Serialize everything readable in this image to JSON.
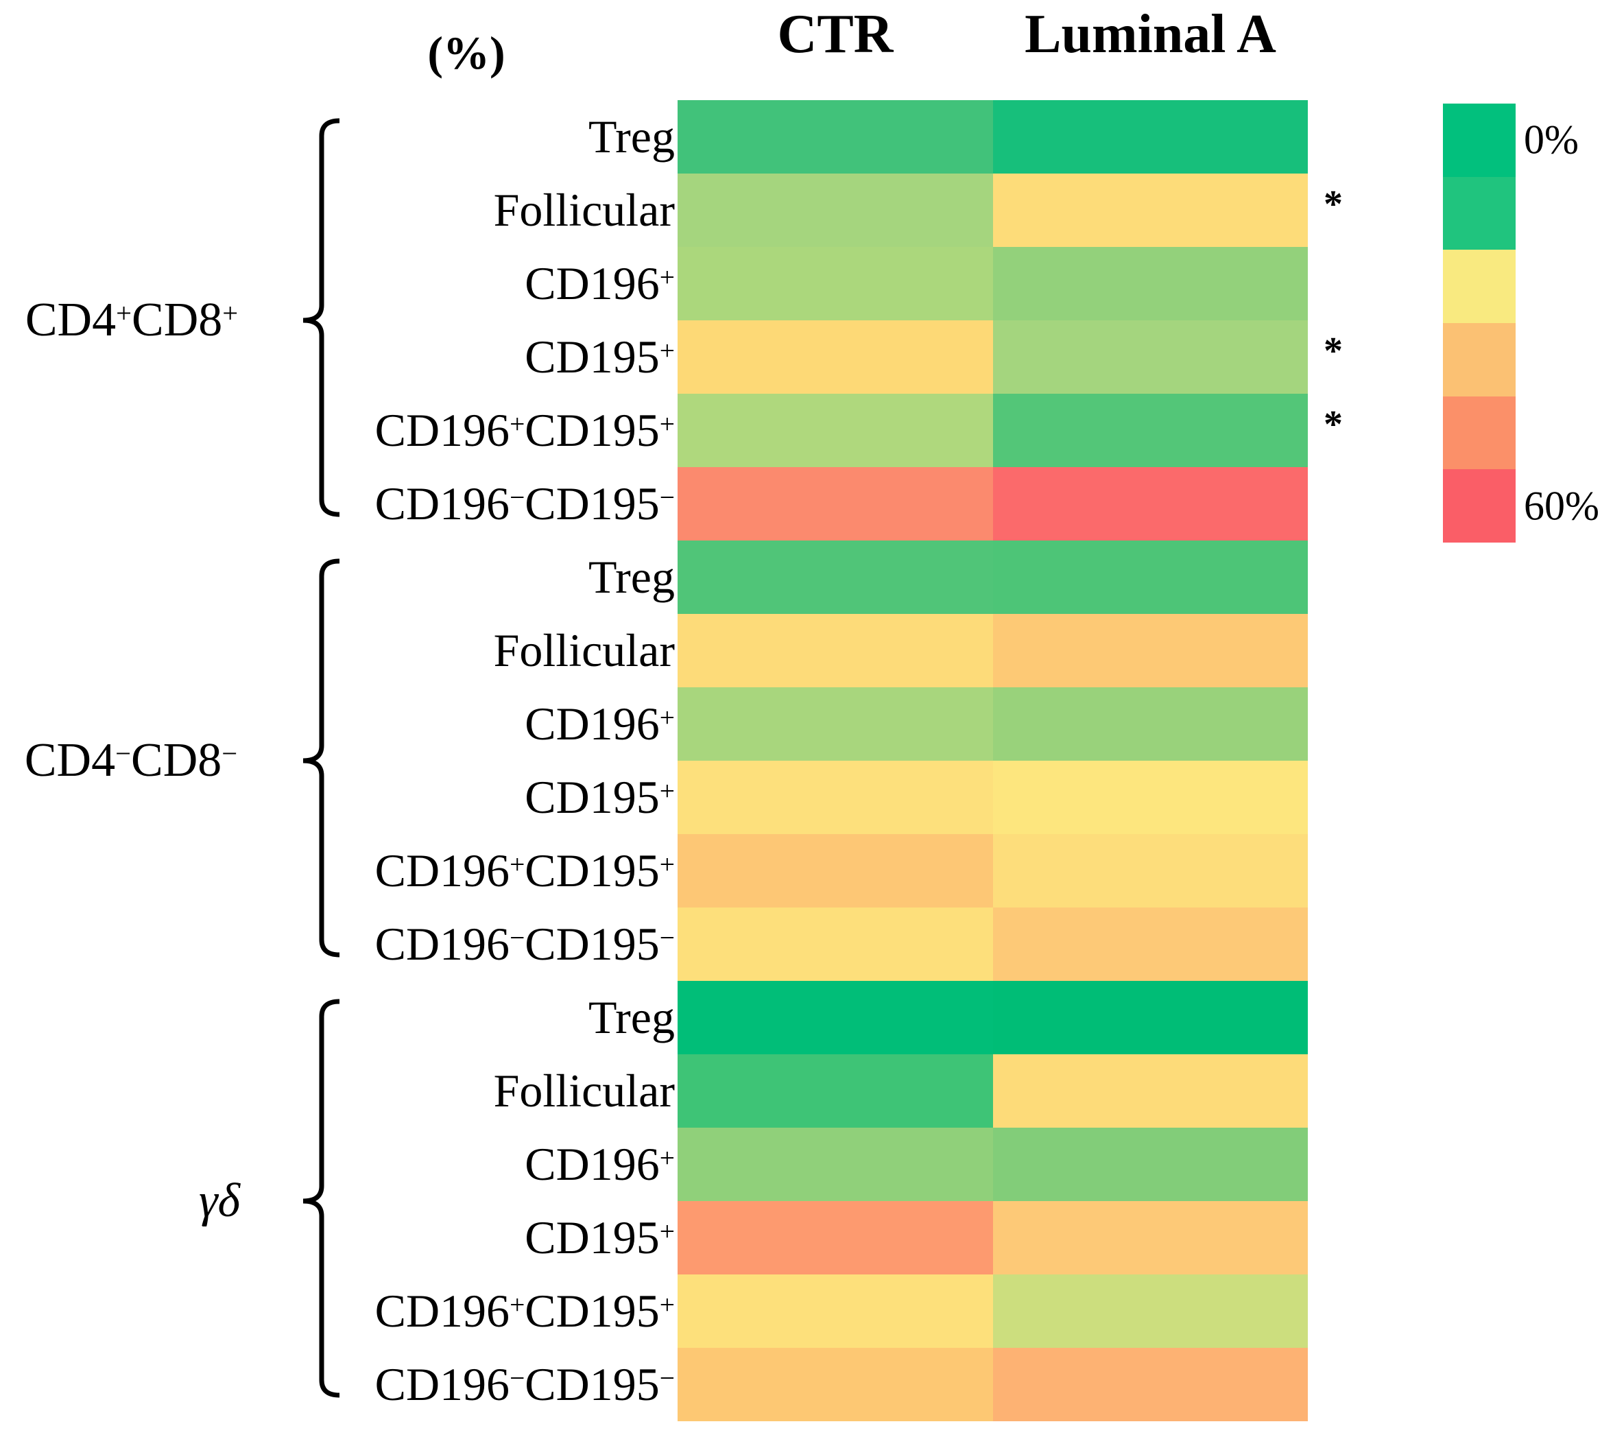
{
  "header": {
    "unit_label": "(%)",
    "columns": [
      "CTR",
      "Luminal A"
    ]
  },
  "legend": {
    "top_label": "0%",
    "bottom_label": "60%",
    "colors": [
      "#02C07D",
      "#20C47E",
      "#F9EA80",
      "#FBC173",
      "#FB9069",
      "#FA5E67"
    ]
  },
  "significance_marker": "*",
  "chart_data": {
    "type": "heatmap",
    "title": "",
    "unit": "%",
    "columns": [
      "CTR",
      "Luminal A"
    ],
    "values_estimated_from_color_scale": true,
    "scale": {
      "min": 0,
      "max": 60,
      "min_label": "0%",
      "max_label": "60%",
      "colormap_green_to_red": [
        "#02C07D",
        "#20C47E",
        "#F9EA80",
        "#FBC173",
        "#FB9069",
        "#FA5E67"
      ]
    },
    "row_groups": [
      {
        "label": "CD4+CD8+",
        "label_parts": [
          {
            "t": "CD4",
            "s": "+"
          },
          {
            "t": "CD8",
            "s": "+"
          }
        ],
        "italic": false,
        "rows": [
          {
            "label": "Treg",
            "label_parts": [
              {
                "t": "Treg",
                "s": ""
              }
            ],
            "significant": false,
            "ctr": {
              "value": 13,
              "color": "#41C27A"
            },
            "luminal_a": {
              "value": 8,
              "color": "#17BF7B"
            }
          },
          {
            "label": "Follicular",
            "label_parts": [
              {
                "t": "Follicular",
                "s": ""
              }
            ],
            "significant": true,
            "ctr": {
              "value": 25,
              "color": "#A5D57E"
            },
            "luminal_a": {
              "value": 35,
              "color": "#FDDC79"
            }
          },
          {
            "label": "CD196+",
            "label_parts": [
              {
                "t": "CD196",
                "s": "+"
              }
            ],
            "significant": false,
            "ctr": {
              "value": 26,
              "color": "#ABD77C"
            },
            "luminal_a": {
              "value": 22,
              "color": "#93D17B"
            }
          },
          {
            "label": "CD195+",
            "label_parts": [
              {
                "t": "CD195",
                "s": "+"
              }
            ],
            "significant": true,
            "ctr": {
              "value": 36,
              "color": "#FDD976"
            },
            "luminal_a": {
              "value": 25,
              "color": "#A4D57E"
            }
          },
          {
            "label": "CD196+CD195+",
            "label_parts": [
              {
                "t": "CD196",
                "s": "+"
              },
              {
                "t": "CD195",
                "s": "+"
              }
            ],
            "significant": true,
            "ctr": {
              "value": 26,
              "color": "#AFD87D"
            },
            "luminal_a": {
              "value": 15,
              "color": "#53C678"
            }
          },
          {
            "label": "CD196−CD195−",
            "label_parts": [
              {
                "t": "CD196",
                "s": "−"
              },
              {
                "t": "CD195",
                "s": "−"
              }
            ],
            "significant": false,
            "ctr": {
              "value": 50,
              "color": "#FB8A6E"
            },
            "luminal_a": {
              "value": 56,
              "color": "#FB6A6B"
            }
          }
        ]
      },
      {
        "label": "CD4−CD8−",
        "label_parts": [
          {
            "t": "CD4",
            "s": "−"
          },
          {
            "t": "CD8",
            "s": "−"
          }
        ],
        "italic": false,
        "rows": [
          {
            "label": "Treg",
            "label_parts": [
              {
                "t": "Treg",
                "s": ""
              }
            ],
            "significant": false,
            "ctr": {
              "value": 15,
              "color": "#50C578"
            },
            "luminal_a": {
              "value": 14,
              "color": "#4DC577"
            }
          },
          {
            "label": "Follicular",
            "label_parts": [
              {
                "t": "Follicular",
                "s": ""
              }
            ],
            "significant": false,
            "ctr": {
              "value": 35,
              "color": "#FDDB79"
            },
            "luminal_a": {
              "value": 39,
              "color": "#FDC975"
            }
          },
          {
            "label": "CD196+",
            "label_parts": [
              {
                "t": "CD196",
                "s": "+"
              }
            ],
            "significant": false,
            "ctr": {
              "value": 25,
              "color": "#A8D67D"
            },
            "luminal_a": {
              "value": 23,
              "color": "#99D27B"
            }
          },
          {
            "label": "CD195+",
            "label_parts": [
              {
                "t": "CD195",
                "s": "+"
              }
            ],
            "significant": false,
            "ctr": {
              "value": 33,
              "color": "#FDE07C"
            },
            "luminal_a": {
              "value": 31,
              "color": "#FDE67E"
            }
          },
          {
            "label": "CD196+CD195+",
            "label_parts": [
              {
                "t": "CD196",
                "s": "+"
              },
              {
                "t": "CD195",
                "s": "+"
              }
            ],
            "significant": false,
            "ctr": {
              "value": 40,
              "color": "#FDC775"
            },
            "luminal_a": {
              "value": 34,
              "color": "#FDDD7B"
            }
          },
          {
            "label": "CD196−CD195−",
            "label_parts": [
              {
                "t": "CD196",
                "s": "−"
              },
              {
                "t": "CD195",
                "s": "−"
              }
            ],
            "significant": false,
            "ctr": {
              "value": 34,
              "color": "#FDDF7B"
            },
            "luminal_a": {
              "value": 39,
              "color": "#FDC977"
            }
          }
        ]
      },
      {
        "label": "γδ",
        "label_parts": [
          {
            "t": "γδ",
            "s": ""
          }
        ],
        "italic": true,
        "rows": [
          {
            "label": "Treg",
            "label_parts": [
              {
                "t": "Treg",
                "s": ""
              }
            ],
            "significant": false,
            "ctr": {
              "value": 2,
              "color": "#01BE78"
            },
            "luminal_a": {
              "value": 1,
              "color": "#00BD76"
            }
          },
          {
            "label": "Follicular",
            "label_parts": [
              {
                "t": "Follicular",
                "s": ""
              }
            ],
            "significant": false,
            "ctr": {
              "value": 12,
              "color": "#3EC476"
            },
            "luminal_a": {
              "value": 35,
              "color": "#FDDB79"
            }
          },
          {
            "label": "CD196+",
            "label_parts": [
              {
                "t": "CD196",
                "s": "+"
              }
            ],
            "significant": false,
            "ctr": {
              "value": 22,
              "color": "#90D07A"
            },
            "luminal_a": {
              "value": 20,
              "color": "#82CD79"
            }
          },
          {
            "label": "CD195+",
            "label_parts": [
              {
                "t": "CD195",
                "s": "+"
              }
            ],
            "significant": false,
            "ctr": {
              "value": 48,
              "color": "#FD9A6F"
            },
            "luminal_a": {
              "value": 39,
              "color": "#FDC977"
            }
          },
          {
            "label": "CD196+CD195+",
            "label_parts": [
              {
                "t": "CD196",
                "s": "+"
              },
              {
                "t": "CD195",
                "s": "+"
              }
            ],
            "significant": false,
            "ctr": {
              "value": 33,
              "color": "#FDE07B"
            },
            "luminal_a": {
              "value": 28,
              "color": "#CCDE7E"
            }
          },
          {
            "label": "CD196−CD195−",
            "label_parts": [
              {
                "t": "CD196",
                "s": "−"
              },
              {
                "t": "CD195",
                "s": "−"
              }
            ],
            "significant": false,
            "ctr": {
              "value": 40,
              "color": "#FDC873"
            },
            "luminal_a": {
              "value": 43,
              "color": "#FDB273"
            }
          }
        ]
      }
    ]
  }
}
